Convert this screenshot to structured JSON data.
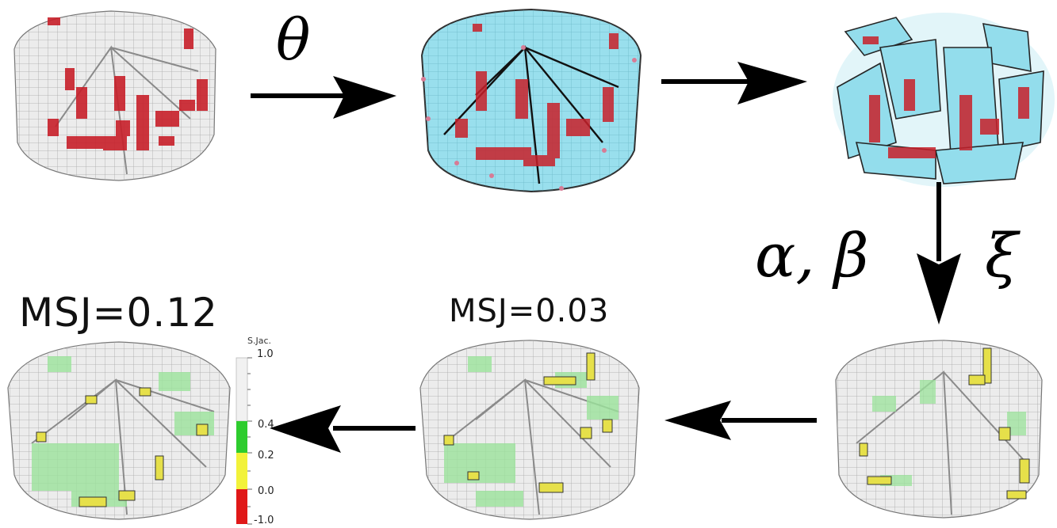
{
  "labels": {
    "theta": "θ",
    "alpha_beta": "α, β",
    "xi": "ξ",
    "msj_left": "MSJ=0.12",
    "msj_mid": "MSJ=0.03"
  },
  "legend": {
    "title": "S.Jac.",
    "ticks": [
      "1.0",
      "0.4",
      "0.2",
      "0.0",
      "-1.0"
    ],
    "colors": {
      "green": "#2ecc2e",
      "yellow": "#f2f23a",
      "red": "#e01818",
      "neutral": "#e8e8e8"
    }
  },
  "colors": {
    "mesh_light": "#e9e9e9",
    "mesh_line": "#9a9a9a",
    "cyan": "#8fdcec",
    "red_cell": "#c8202a",
    "green_cell": "#9be39b",
    "yellow_cell": "#e6e04a",
    "arrow": "#000000"
  }
}
